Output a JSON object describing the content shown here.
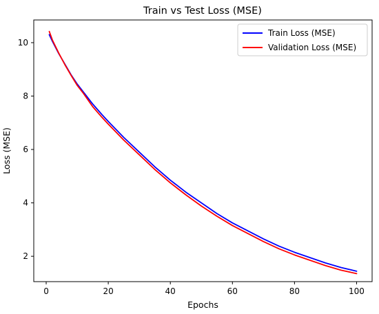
{
  "chart_data": {
    "type": "line",
    "title": "Train vs Test Loss (MSE)",
    "xlabel": "Epochs",
    "ylabel": "Loss (MSE)",
    "xlim": [
      -4,
      105
    ],
    "ylim": [
      1.05,
      10.85
    ],
    "xticks": [
      0,
      20,
      40,
      60,
      80,
      100
    ],
    "yticks": [
      2,
      4,
      6,
      8,
      10
    ],
    "grid": false,
    "legend_position": "upper right",
    "series": [
      {
        "name": "Train Loss (MSE)",
        "color": "#0000ff",
        "x": [
          1,
          2,
          4,
          6,
          8,
          10,
          12,
          15,
          18,
          20,
          25,
          30,
          35,
          40,
          45,
          50,
          55,
          60,
          65,
          70,
          75,
          80,
          85,
          90,
          95,
          100
        ],
        "y": [
          10.3,
          10.05,
          9.6,
          9.2,
          8.8,
          8.45,
          8.15,
          7.7,
          7.3,
          7.05,
          6.45,
          5.9,
          5.35,
          4.85,
          4.4,
          4.0,
          3.6,
          3.25,
          2.95,
          2.65,
          2.38,
          2.15,
          1.95,
          1.75,
          1.58,
          1.44
        ]
      },
      {
        "name": "Validation Loss (MSE)",
        "color": "#ff0000",
        "x": [
          1,
          2,
          4,
          6,
          8,
          10,
          12,
          15,
          18,
          20,
          25,
          30,
          35,
          40,
          45,
          50,
          55,
          60,
          65,
          70,
          75,
          80,
          85,
          90,
          95,
          100
        ],
        "y": [
          10.42,
          10.1,
          9.62,
          9.18,
          8.78,
          8.4,
          8.1,
          7.6,
          7.2,
          6.95,
          6.35,
          5.8,
          5.25,
          4.75,
          4.3,
          3.88,
          3.5,
          3.15,
          2.85,
          2.55,
          2.28,
          2.05,
          1.85,
          1.65,
          1.48,
          1.35
        ]
      }
    ]
  }
}
